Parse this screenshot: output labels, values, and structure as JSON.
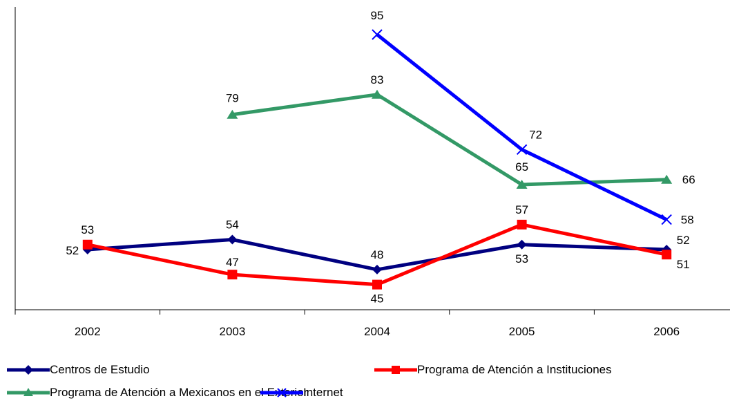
{
  "chart_data": {
    "type": "line",
    "title": "",
    "xlabel": "",
    "ylabel": "",
    "categories": [
      "2002",
      "2003",
      "2004",
      "2005",
      "2006"
    ],
    "ylim": [
      40,
      100
    ],
    "grid": false,
    "legend_position": "bottom",
    "series": [
      {
        "name": "Centros de Estudio",
        "color": "#000080",
        "marker": "diamond",
        "values": [
          52,
          54,
          48,
          53,
          52
        ],
        "labels": [
          "52",
          "54",
          "48",
          "53",
          "52"
        ]
      },
      {
        "name": "Programa de Atención a Instituciones",
        "color": "#FF0000",
        "marker": "square",
        "values": [
          53,
          47,
          45,
          57,
          51
        ],
        "labels": [
          "53",
          "47",
          "45",
          "57",
          "51"
        ]
      },
      {
        "name": "Programa de Atención a Mexicanos en el Exterior",
        "color": "#339966",
        "marker": "triangle",
        "values": [
          null,
          79,
          83,
          65,
          66
        ],
        "labels": [
          null,
          "79",
          "83",
          "65",
          "66"
        ]
      },
      {
        "name": "Internet",
        "color": "#0000FF",
        "marker": "x",
        "values": [
          null,
          null,
          95,
          72,
          58
        ],
        "labels": [
          null,
          null,
          "95",
          "72",
          "58"
        ]
      }
    ]
  }
}
